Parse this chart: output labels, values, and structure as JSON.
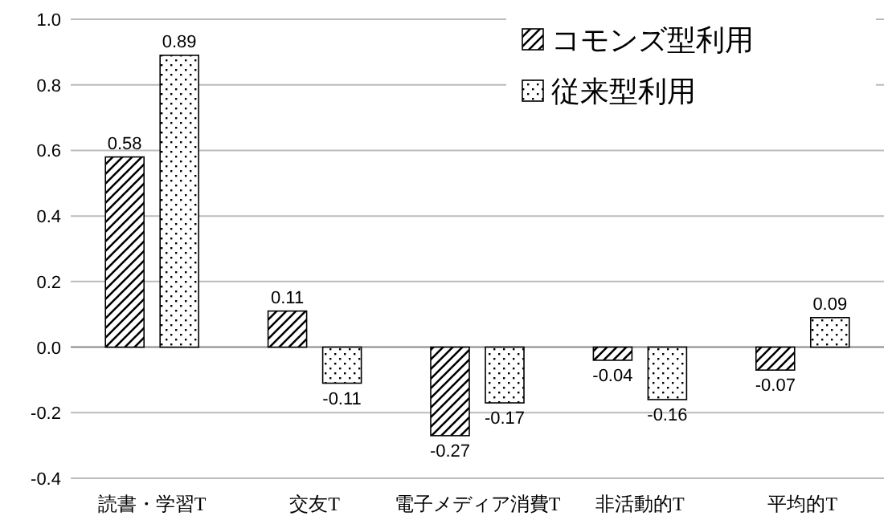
{
  "chart_data": {
    "type": "bar",
    "categories": [
      "読書・学習T",
      "交友T",
      "電子メディア消費T",
      "非活動的T",
      "平均的T"
    ],
    "series": [
      {
        "name": "コモンズ型利用",
        "color": "#000000",
        "values": [
          0.58,
          0.11,
          -0.27,
          -0.04,
          -0.07
        ]
      },
      {
        "name": "従来型利用",
        "color": "#000000",
        "values": [
          0.89,
          -0.11,
          -0.17,
          -0.16,
          0.09
        ]
      }
    ],
    "ylim": [
      -0.4,
      1.0
    ],
    "yticks": [
      -0.4,
      -0.2,
      {
        "value": 0,
        "label": "0.0"
      },
      0.2,
      0.4,
      0.6,
      0.8,
      {
        "value": 1,
        "label": "1.0"
      }
    ],
    "grid": "y",
    "legend": "top right",
    "data_labels": true
  }
}
